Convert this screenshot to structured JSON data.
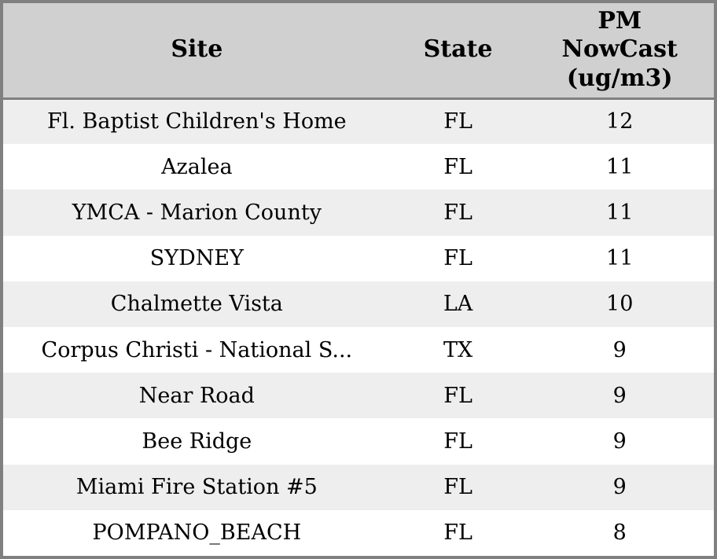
{
  "table": {
    "columns": [
      {
        "label": "Site"
      },
      {
        "label": "State"
      },
      {
        "label": "PM NowCast (ug/m3)",
        "lines": [
          "PM",
          "NowCast",
          "(ug/m3)"
        ]
      }
    ],
    "rows": [
      {
        "site": "Fl. Baptist Children's Home",
        "state": "FL",
        "pm_nowcast": "12"
      },
      {
        "site": "Azalea",
        "state": "FL",
        "pm_nowcast": "11"
      },
      {
        "site": "YMCA - Marion County",
        "state": "FL",
        "pm_nowcast": "11"
      },
      {
        "site": "SYDNEY",
        "state": "FL",
        "pm_nowcast": "11"
      },
      {
        "site": "Chalmette Vista",
        "state": "LA",
        "pm_nowcast": "10"
      },
      {
        "site": "Corpus Christi - National S...",
        "state": "TX",
        "pm_nowcast": "9"
      },
      {
        "site": "Near Road",
        "state": "FL",
        "pm_nowcast": "9"
      },
      {
        "site": "Bee Ridge",
        "state": "FL",
        "pm_nowcast": "9"
      },
      {
        "site": "Miami Fire Station #5",
        "state": "FL",
        "pm_nowcast": "9"
      },
      {
        "site": "POMPANO_BEACH",
        "state": "FL",
        "pm_nowcast": "8"
      }
    ]
  },
  "colors": {
    "border": "#808080",
    "header_bg": "#d0d0d0",
    "stripe_bg": "#eeeeee",
    "row_bg": "#ffffff",
    "text": "#000000"
  }
}
